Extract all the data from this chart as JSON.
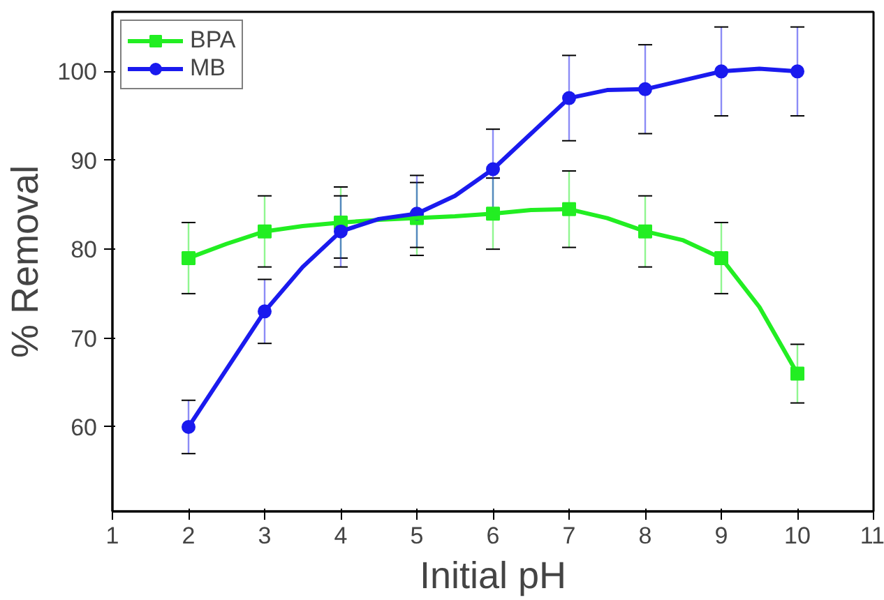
{
  "chart_data": {
    "type": "scatter",
    "xlabel": "Initial pH",
    "ylabel": "% Removal",
    "x": [
      2,
      3,
      4,
      5,
      6,
      7,
      8,
      9,
      10
    ],
    "series": [
      {
        "name": "BPA",
        "color": "#22ee22",
        "marker": "square",
        "values": [
          79,
          82,
          83,
          83.5,
          84,
          84.5,
          82,
          79,
          66
        ],
        "errors": [
          4,
          4,
          4,
          [
            79.3,
            87.5
          ],
          4,
          4.3,
          4,
          4,
          3.3
        ]
      },
      {
        "name": "MB",
        "color": "#1a1aee",
        "marker": "circle",
        "values": [
          60,
          73,
          82,
          84,
          89,
          97,
          98,
          100,
          100
        ],
        "errors": [
          3,
          3.6,
          4,
          [
            80.2,
            88.3
          ],
          4.5,
          4.8,
          5,
          5,
          5
        ]
      },
      {
        "type": "line",
        "color": "#22ee22",
        "x": [
          2,
          2.5,
          3,
          3.5,
          4,
          4.5,
          5,
          5.5,
          6,
          6.5,
          7,
          7.5,
          8,
          8.5,
          9,
          9.5,
          10
        ],
        "values": [
          79,
          80.6,
          82,
          82.6,
          83,
          83.3,
          83.5,
          83.7,
          84,
          84.4,
          84.5,
          83.5,
          82,
          81,
          79,
          73.5,
          66
        ]
      },
      {
        "type": "line",
        "color": "#1a1aee",
        "x": [
          2,
          2.5,
          3,
          3.5,
          4,
          4.5,
          5,
          5.5,
          6,
          6.5,
          7,
          7.5,
          8,
          8.5,
          9,
          9.5,
          10
        ],
        "values": [
          60,
          66.5,
          73,
          78,
          82,
          83.4,
          84,
          86,
          89,
          93,
          97,
          97.9,
          98,
          99,
          100,
          100.3,
          100
        ]
      }
    ],
    "xlim": [
      1,
      11
    ],
    "xticks": [
      1,
      2,
      3,
      4,
      5,
      6,
      7,
      8,
      9,
      10,
      11
    ],
    "ylim": [
      50.5,
      106.7
    ],
    "yticks": [
      60,
      70,
      80,
      90,
      100
    ],
    "grid": false,
    "legend": "top left",
    "line_style": "solid"
  }
}
